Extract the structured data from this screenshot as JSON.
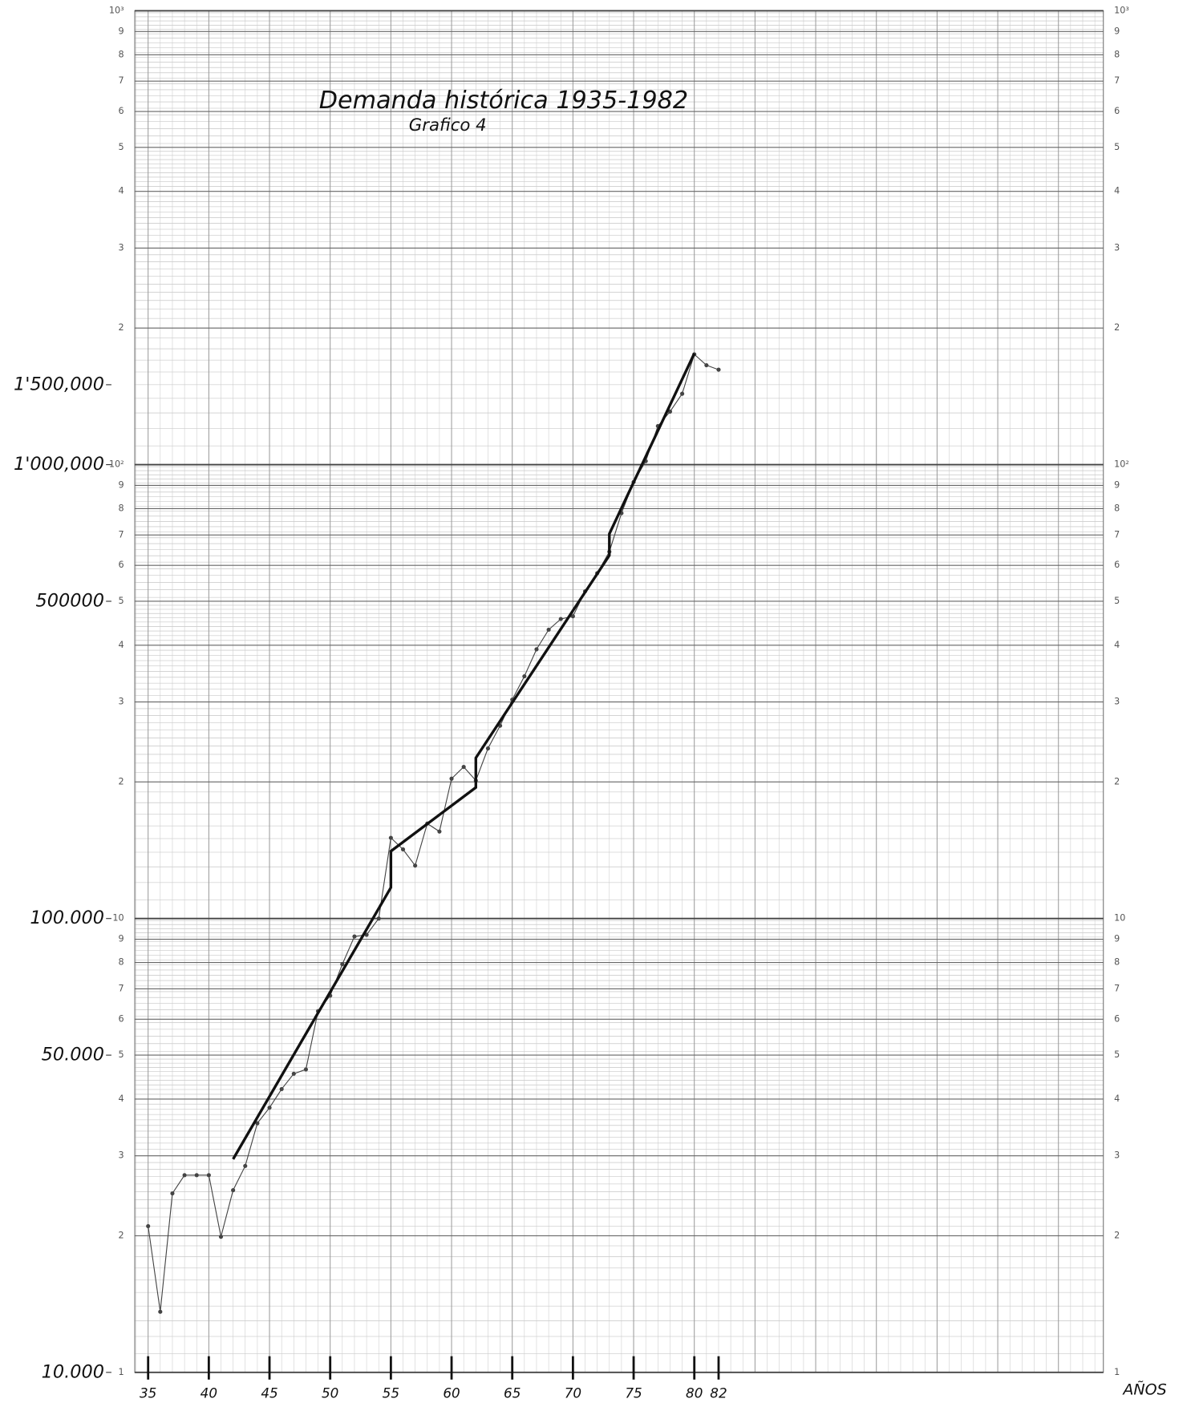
{
  "chart_data": {
    "type": "line",
    "title": "Demanda histórica 1935-1982",
    "subtitle": "Grafico 4",
    "x_label": "AÑOS",
    "log_scale": true,
    "grid": true,
    "xlim": [
      33.9,
      113.7
    ],
    "xticks": [
      35,
      40,
      45,
      50,
      55,
      60,
      65,
      70,
      75,
      80,
      82
    ],
    "ylim": [
      10000,
      10000000
    ],
    "yticks": [
      {
        "value": 10000,
        "label": "10.000"
      },
      {
        "value": 50000,
        "label": "50.000"
      },
      {
        "value": 100000,
        "label": "100.000"
      },
      {
        "value": 500000,
        "label": "500000"
      },
      {
        "value": 1000000,
        "label": "1'000,000"
      },
      {
        "value": 1500000,
        "label": "1'500,000"
      }
    ],
    "y2lim": [
      1,
      1000
    ],
    "y2ticks": [
      1,
      2,
      3,
      4,
      5,
      6,
      7,
      8,
      9,
      10,
      {
        "value": 20,
        "label": "2"
      },
      {
        "value": 30,
        "label": "3"
      },
      {
        "value": 40,
        "label": "4"
      },
      {
        "value": 50,
        "label": "5"
      },
      {
        "value": 60,
        "label": "6"
      },
      {
        "value": 70,
        "label": "7"
      },
      {
        "value": 80,
        "label": "8"
      },
      {
        "value": 90,
        "label": "9"
      },
      {
        "value": 100,
        "label": "10²"
      },
      {
        "value": 200,
        "label": "2"
      },
      {
        "value": 300,
        "label": "3"
      },
      {
        "value": 400,
        "label": "4"
      },
      {
        "value": 500,
        "label": "5"
      },
      {
        "value": 600,
        "label": "6"
      },
      {
        "value": 700,
        "label": "7"
      },
      {
        "value": 800,
        "label": "8"
      },
      {
        "value": 900,
        "label": "9"
      },
      {
        "value": 1000,
        "label": "10³"
      }
    ],
    "series": [
      {
        "color": "#444",
        "style": "thin",
        "x": [
          35,
          36,
          37,
          38,
          39,
          40,
          41,
          42,
          43,
          44,
          45,
          46,
          47,
          48,
          49,
          50,
          51,
          52,
          53,
          54,
          55,
          56,
          57,
          58,
          59,
          60,
          61,
          62,
          63,
          64,
          65,
          66,
          67,
          68,
          69,
          70,
          71,
          72,
          73,
          74,
          75,
          76,
          77,
          78,
          79,
          80,
          81,
          82
        ],
        "values": [
          21000,
          13600,
          24800,
          27200,
          27200,
          27200,
          19900,
          25200,
          28500,
          35400,
          38300,
          42100,
          45500,
          46500,
          62500,
          67600,
          79300,
          91300,
          92100,
          100000,
          150600,
          142000,
          130800,
          161900,
          155500,
          203300,
          215800,
          201400,
          237000,
          266000,
          303500,
          341800,
          391900,
          432800,
          457000,
          463400,
          526000,
          576500,
          643000,
          782000,
          916000,
          1018000,
          1216000,
          1309000,
          1433000,
          1750000,
          1656000,
          1619000
        ]
      },
      {
        "color": "#111",
        "style": "thick",
        "x": [
          42,
          55,
          55,
          62,
          62,
          73,
          73,
          80
        ],
        "values": [
          29500,
          117000,
          140700,
          194400,
          225900,
          631000,
          704000,
          1758000
        ]
      }
    ]
  }
}
